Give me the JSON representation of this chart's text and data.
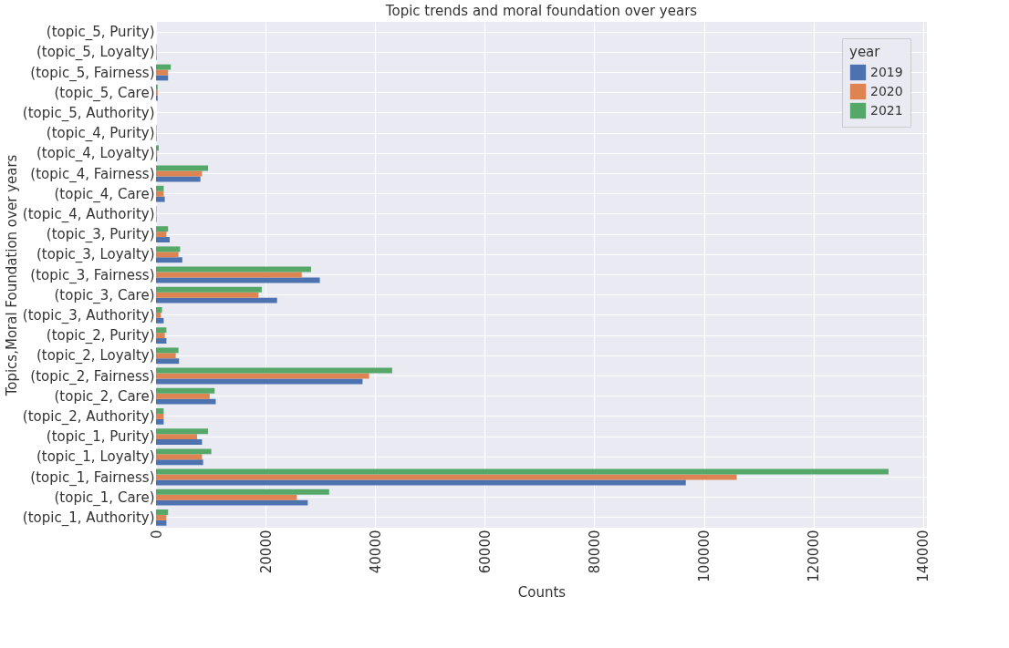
{
  "chart_data": {
    "type": "bar",
    "orientation": "horizontal",
    "title": "Topic trends and moral foundation over years",
    "xlabel": "Counts",
    "ylabel": "Topics,Moral Foundation over years",
    "legend_title": "year",
    "categories": [
      "(topic_5, Purity)",
      "(topic_5, Loyalty)",
      "(topic_5, Fairness)",
      "(topic_5, Care)",
      "(topic_5, Authority)",
      "(topic_4, Purity)",
      "(topic_4, Loyalty)",
      "(topic_4, Fairness)",
      "(topic_4, Care)",
      "(topic_4, Authority)",
      "(topic_3, Purity)",
      "(topic_3, Loyalty)",
      "(topic_3, Fairness)",
      "(topic_3, Care)",
      "(topic_3, Authority)",
      "(topic_2, Purity)",
      "(topic_2, Loyalty)",
      "(topic_2, Fairness)",
      "(topic_2, Care)",
      "(topic_2, Authority)",
      "(topic_1, Purity)",
      "(topic_1, Loyalty)",
      "(topic_1, Fairness)",
      "(topic_1, Care)",
      "(topic_1, Authority)"
    ],
    "series": [
      {
        "name": "2019",
        "color": "#4c72b0",
        "values": [
          0,
          100,
          2200,
          300,
          0,
          100,
          200,
          8100,
          1600,
          100,
          2500,
          4800,
          29900,
          22100,
          1400,
          1900,
          4200,
          37700,
          10900,
          1400,
          8400,
          8600,
          96700,
          27700,
          1900
        ]
      },
      {
        "name": "2020",
        "color": "#dd8452",
        "values": [
          0,
          100,
          2200,
          300,
          0,
          100,
          200,
          8400,
          1400,
          100,
          1900,
          4100,
          26600,
          18700,
          900,
          1600,
          3600,
          38900,
          9800,
          1400,
          7500,
          8400,
          106000,
          25700,
          1900
        ]
      },
      {
        "name": "2021",
        "color": "#55a868",
        "values": [
          0,
          100,
          2700,
          300,
          0,
          100,
          500,
          9500,
          1400,
          100,
          2200,
          4400,
          28300,
          19300,
          1100,
          1900,
          4100,
          43100,
          10700,
          1400,
          9500,
          10100,
          133700,
          31600,
          2200
        ]
      }
    ],
    "xlim": [
      0,
      140700
    ],
    "xticks": [
      0,
      20000,
      40000,
      60000,
      80000,
      100000,
      120000,
      140000
    ],
    "grid": true,
    "legend": "top right"
  }
}
